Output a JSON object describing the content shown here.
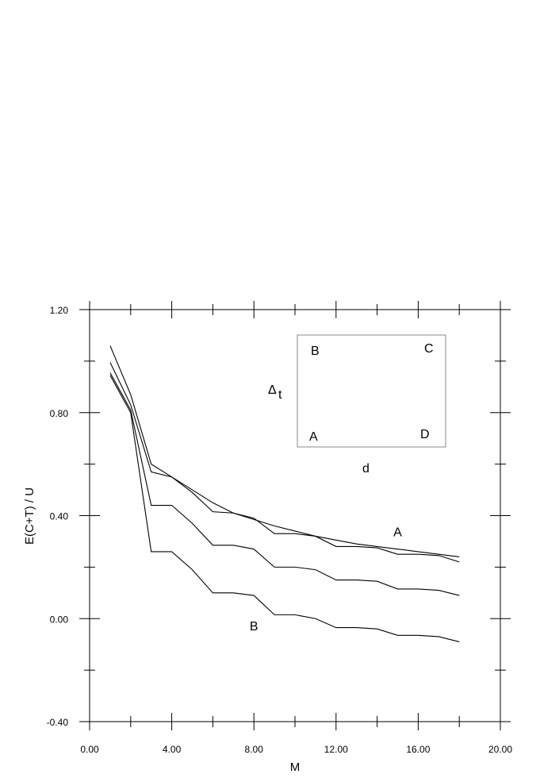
{
  "chart_data": {
    "type": "line",
    "xlabel": "M",
    "ylabel": "E(C+T) / U",
    "xlim": [
      0,
      20
    ],
    "ylim": [
      -0.4,
      1.2
    ],
    "xticks": [
      "0.00",
      "4.00",
      "8.00",
      "12.00",
      "16.00",
      "20.00"
    ],
    "yticks": [
      "-0.40",
      "0.00",
      "0.40",
      "0.80",
      "1.20"
    ],
    "series": [
      {
        "x": [
          1,
          2,
          3,
          4,
          5,
          6,
          7,
          8,
          9,
          10,
          11,
          12,
          13,
          14,
          15,
          16,
          17,
          18
        ],
        "y": [
          1.06,
          0.87,
          0.6,
          0.55,
          0.5,
          0.45,
          0.41,
          0.385,
          0.36,
          0.34,
          0.32,
          0.305,
          0.29,
          0.28,
          0.27,
          0.26,
          0.25,
          0.24
        ]
      },
      {
        "x": [
          1,
          2,
          3,
          4,
          5,
          6,
          7,
          8,
          9,
          10,
          11,
          12,
          13,
          14,
          15,
          16,
          17,
          18
        ],
        "y": [
          0.995,
          0.83,
          0.57,
          0.55,
          0.49,
          0.415,
          0.41,
          0.39,
          0.33,
          0.33,
          0.32,
          0.28,
          0.28,
          0.275,
          0.25,
          0.25,
          0.245,
          0.22
        ]
      },
      {
        "x": [
          1,
          2,
          3,
          4,
          5,
          6,
          7,
          8,
          9,
          10,
          11,
          12,
          13,
          14,
          15,
          16,
          17,
          18
        ],
        "y": [
          0.955,
          0.81,
          0.44,
          0.44,
          0.37,
          0.285,
          0.285,
          0.27,
          0.2,
          0.2,
          0.19,
          0.15,
          0.15,
          0.145,
          0.115,
          0.115,
          0.11,
          0.09
        ]
      },
      {
        "x": [
          1,
          2,
          3,
          4,
          5,
          6,
          7,
          8,
          9,
          10,
          11,
          12,
          13,
          14,
          15,
          16,
          17,
          18
        ],
        "y": [
          0.945,
          0.8,
          0.26,
          0.26,
          0.19,
          0.1,
          0.1,
          0.09,
          0.015,
          0.015,
          0.0,
          -0.035,
          -0.035,
          -0.04,
          -0.065,
          -0.065,
          -0.07,
          -0.09
        ]
      }
    ],
    "annotations": [
      {
        "text": "A",
        "x": 15.0,
        "y": 0.32
      },
      {
        "text": "B",
        "x": 8.0,
        "y": -0.045
      }
    ],
    "inset": {
      "corner_labels": [
        "B",
        "C",
        "A",
        "D"
      ],
      "side_label": "Δ",
      "side_label_subscript": "t",
      "bottom_label": "d"
    }
  }
}
